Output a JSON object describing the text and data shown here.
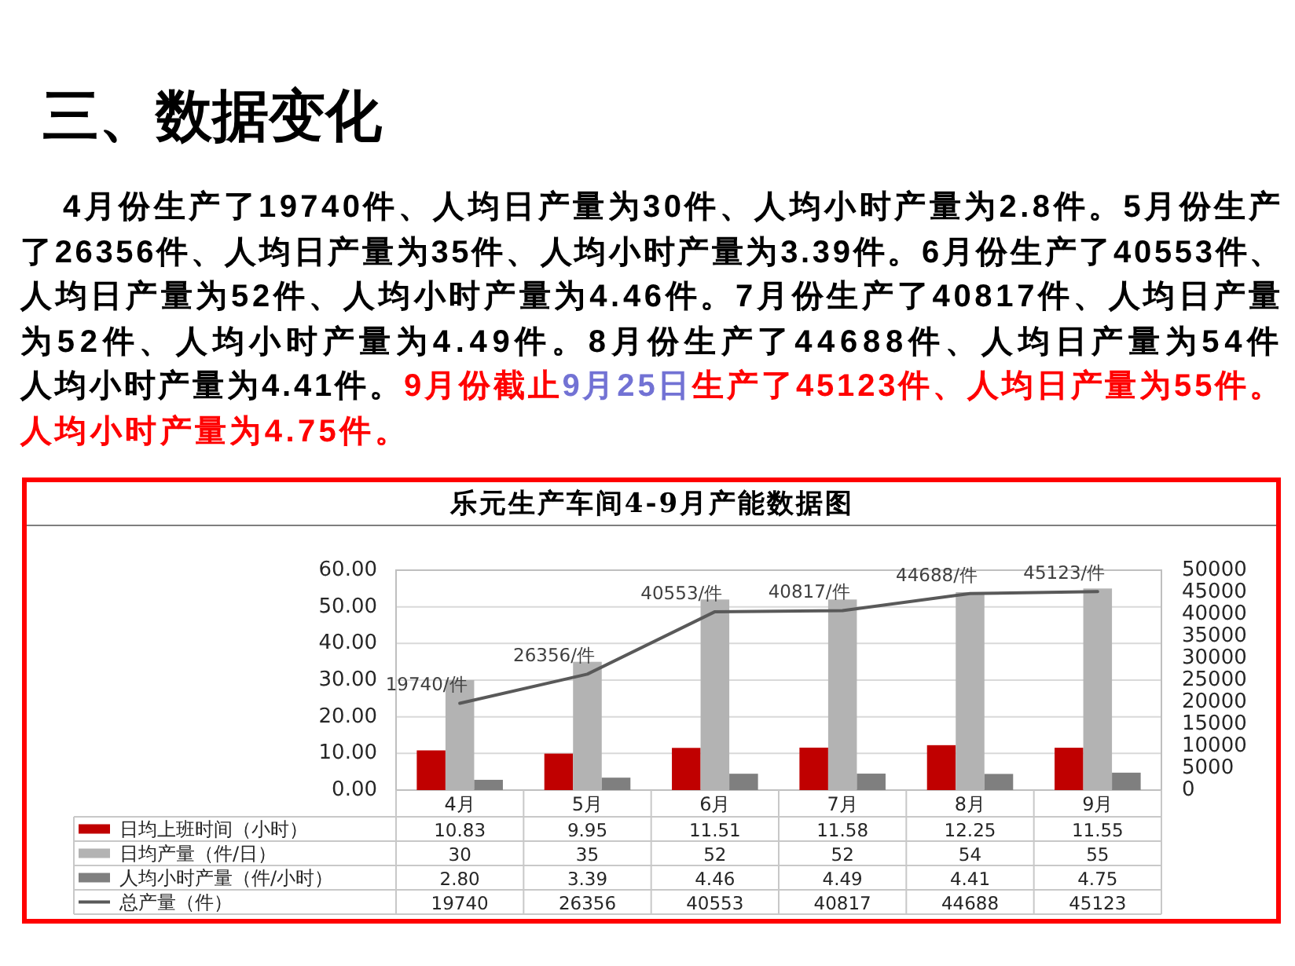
{
  "chart_data": {
    "type": "bar",
    "title": "乐元生产车间4-9月产能数据图",
    "categories": [
      "4月",
      "5月",
      "6月",
      "7月",
      "8月",
      "9月"
    ],
    "series": [
      {
        "name": "日均上班时间（小时）",
        "color": "#c00000",
        "values": [
          10.83,
          9.95,
          11.51,
          11.58,
          12.25,
          11.55
        ],
        "value_labels": [
          "10.83",
          "9.95",
          "11.51",
          "11.58",
          "12.25",
          "11.55"
        ]
      },
      {
        "name": "日均产量（件/日）",
        "color": "#b3b3b3",
        "values": [
          30,
          35,
          52,
          52,
          54,
          55
        ],
        "value_labels": [
          "30",
          "35",
          "52",
          "52",
          "54",
          "55"
        ]
      },
      {
        "name": "人均小时产量（件/小时）",
        "color": "#7f7f7f",
        "values": [
          2.8,
          3.39,
          4.46,
          4.49,
          4.41,
          4.75
        ],
        "value_labels": [
          "2.80",
          "3.39",
          "4.46",
          "4.49",
          "4.41",
          "4.75"
        ]
      },
      {
        "name": "总产量（件）",
        "type": "line",
        "axis": "y2",
        "color": "#595959",
        "values": [
          19740,
          26356,
          40553,
          40817,
          44688,
          45123
        ],
        "value_labels": [
          "19740",
          "26356",
          "40553",
          "40817",
          "44688",
          "45123"
        ]
      }
    ],
    "ylim": [
      0,
      60
    ],
    "yticks": [
      {
        "value": 0,
        "label": "0.00"
      },
      {
        "value": 10,
        "label": "10.00"
      },
      {
        "value": 20,
        "label": "20.00"
      },
      {
        "value": 30,
        "label": "30.00"
      },
      {
        "value": 40,
        "label": "40.00"
      },
      {
        "value": 50,
        "label": "50.00"
      },
      {
        "value": 60,
        "label": "60.00"
      }
    ],
    "y2lim": [
      0,
      50000
    ],
    "y2ticks": [
      0,
      5000,
      10000,
      15000,
      20000,
      25000,
      30000,
      35000,
      40000,
      45000,
      50000
    ],
    "grid": "y",
    "legend": "bottom",
    "annotations": [
      "三、数据变化",
      "4月份生产了19740件、人均日产量为30件、人均小时产量为2.8件。5月份生产了26356件、人均日产量为35件、人均小时产量为3.39件。6月份生产了40553件、人均日产量为52件、人均小时产量为4.46件。7月份生产了40817件、人均日产量为52件、人均小时产量为4.49件。8月份生产了44688件、人均日产量为54件",
      "人均小时产量为4.41件。",
      "9月份截止",
      "9月25日",
      "生产了45123件、人均日产量为55件。",
      "人均小时产量为4.75件。",
      "19740/件",
      "26356/件",
      "40553/件",
      "40817/件",
      "44688/件",
      "45123/件"
    ]
  }
}
